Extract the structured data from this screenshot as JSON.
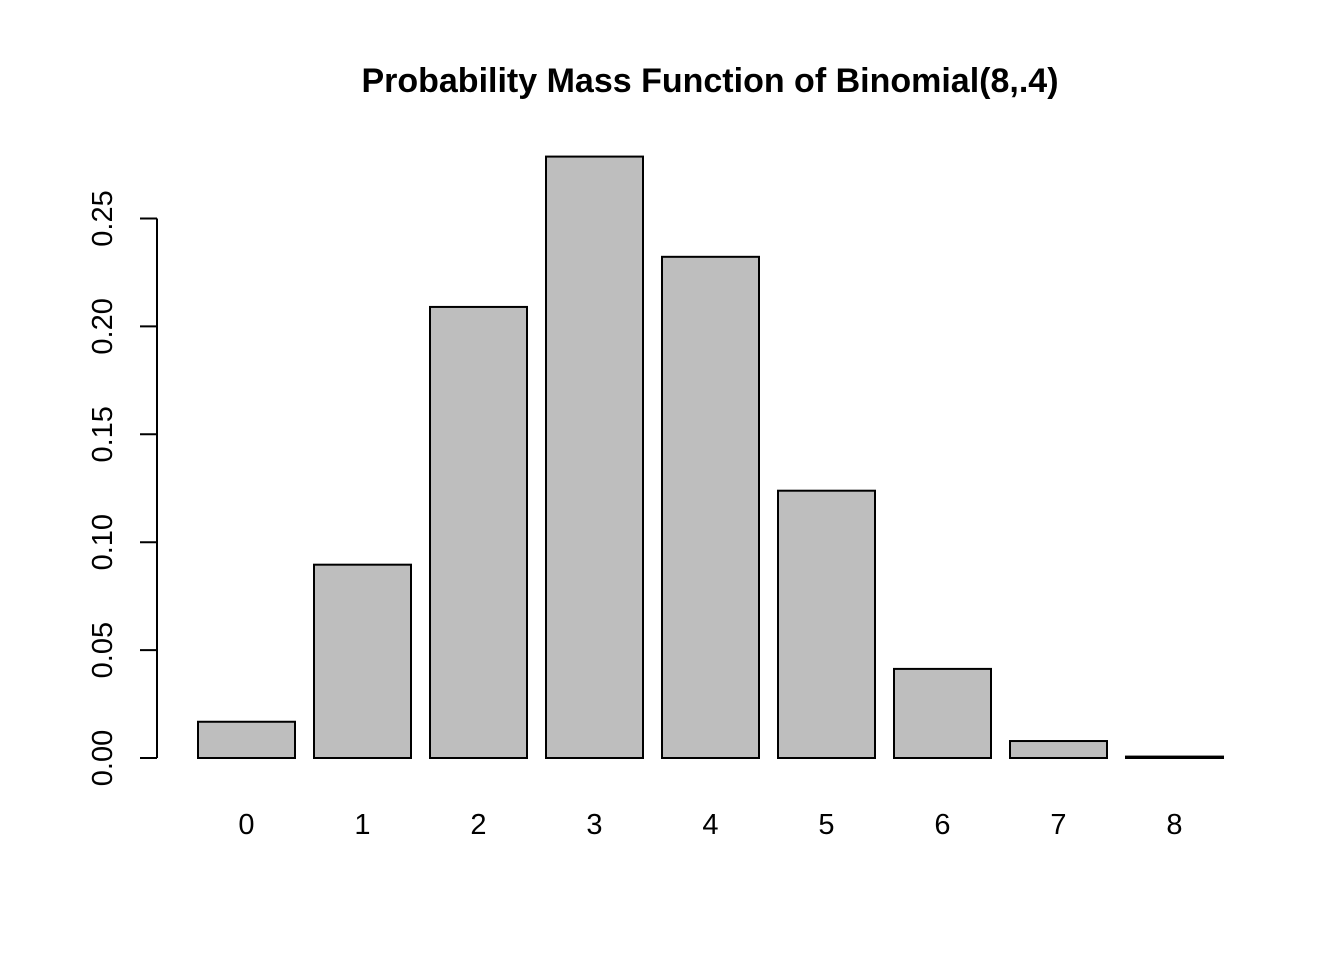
{
  "chart_data": {
    "type": "bar",
    "title": "Probability Mass Function of Binomial(8,.4)",
    "xlabel": "",
    "ylabel": "",
    "categories": [
      "0",
      "1",
      "2",
      "3",
      "4",
      "5",
      "6",
      "7",
      "8"
    ],
    "values": [
      0.016796,
      0.08958,
      0.209019,
      0.278692,
      0.232243,
      0.123863,
      0.041288,
      0.007864,
      0.000655
    ],
    "ylim": [
      0,
      0.28
    ],
    "y_ticks": [
      0.0,
      0.05,
      0.1,
      0.15,
      0.2,
      0.25
    ],
    "y_tick_labels": [
      "0.00",
      "0.05",
      "0.10",
      "0.15",
      "0.20",
      "0.25"
    ],
    "grid": false,
    "legend": "none",
    "colors": {
      "bar_fill": "#bebebe",
      "bar_stroke": "#000000",
      "background": "#ffffff"
    }
  }
}
